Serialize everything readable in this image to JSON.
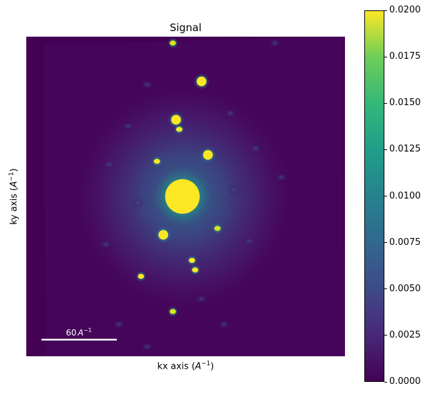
{
  "chart_data": {
    "type": "heatmap",
    "title": "Signal",
    "xlabel": "kx axis",
    "xlabel_unit": "A",
    "xlabel_unit_exp": "−1",
    "ylabel": "ky axis",
    "ylabel_unit": "A",
    "ylabel_unit_exp": "−1",
    "scalebar": {
      "value": "60",
      "unit": "A",
      "unit_exp": "−1"
    },
    "colorbar": {
      "colormap": "viridis",
      "vmin": 0.0,
      "vmax": 0.02,
      "ticks": [
        "0.0000",
        "0.0025",
        "0.0050",
        "0.0075",
        "0.0100",
        "0.0125",
        "0.0150",
        "0.0175",
        "0.0200"
      ]
    },
    "background_color": "#440154",
    "spots": [
      {
        "x": 0.49,
        "y": 0.5,
        "intensity": 1.0,
        "size": "large"
      },
      {
        "x": 0.55,
        "y": 0.14,
        "intensity": 1.0,
        "size": "medium"
      },
      {
        "x": 0.47,
        "y": 0.26,
        "intensity": 1.0,
        "size": "medium"
      },
      {
        "x": 0.48,
        "y": 0.29,
        "intensity": 1.0,
        "size": "small"
      },
      {
        "x": 0.57,
        "y": 0.37,
        "intensity": 1.0,
        "size": "medium"
      },
      {
        "x": 0.41,
        "y": 0.39,
        "intensity": 1.0,
        "size": "small"
      },
      {
        "x": 0.43,
        "y": 0.62,
        "intensity": 1.0,
        "size": "medium"
      },
      {
        "x": 0.6,
        "y": 0.6,
        "intensity": 0.95,
        "size": "small"
      },
      {
        "x": 0.52,
        "y": 0.7,
        "intensity": 1.0,
        "size": "small"
      },
      {
        "x": 0.53,
        "y": 0.73,
        "intensity": 1.0,
        "size": "small"
      },
      {
        "x": 0.36,
        "y": 0.75,
        "intensity": 1.0,
        "size": "small"
      },
      {
        "x": 0.46,
        "y": 0.86,
        "intensity": 0.95,
        "size": "small"
      },
      {
        "x": 0.46,
        "y": 0.02,
        "intensity": 0.9,
        "size": "small"
      }
    ]
  }
}
